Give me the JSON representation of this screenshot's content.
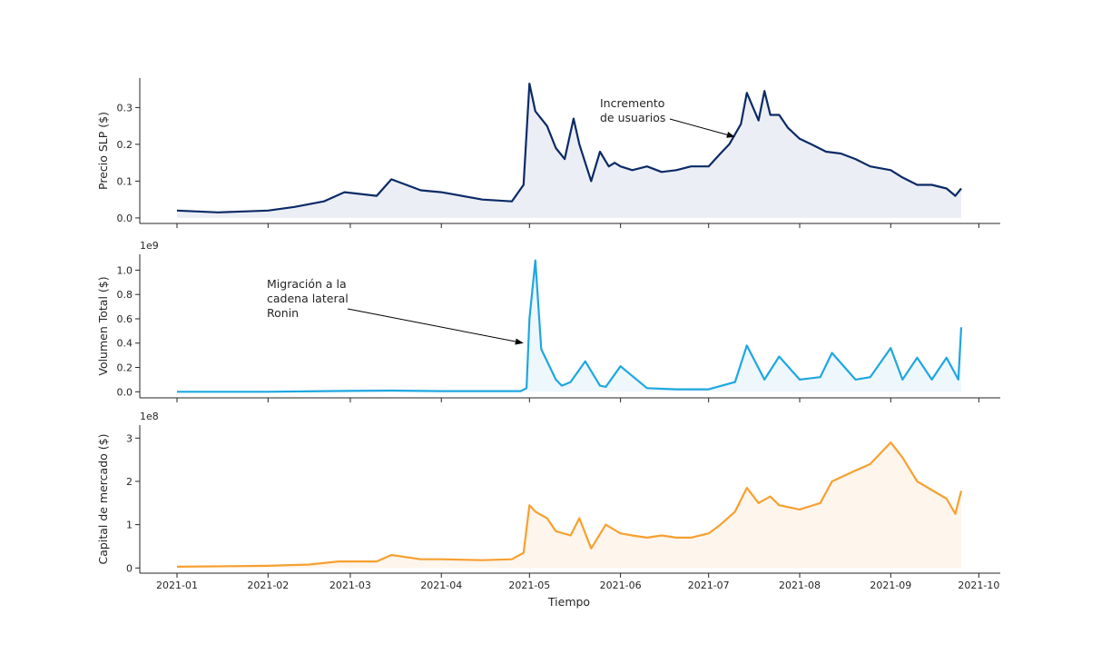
{
  "chart_data": [
    {
      "type": "area",
      "ylabel": "Precio SLP ($)",
      "ylim": [
        -0.015,
        0.38
      ],
      "yticks": [
        "0.0",
        "0.1",
        "0.2",
        "0.3"
      ],
      "ytick_values": [
        0,
        0.1,
        0.2,
        0.3
      ],
      "offset_text": "",
      "color": "#0b2a66",
      "fill": "#eceef5",
      "annotation": {
        "lines": [
          "Incremento",
          "de usuarios"
        ],
        "target": [
          "2021-07-10",
          0.22
        ]
      },
      "series": [
        {
          "x": [
            "2021-01-01",
            "2021-01-15",
            "2021-02-01",
            "2021-02-10",
            "2021-02-20",
            "2021-02-27",
            "2021-03-10",
            "2021-03-15",
            "2021-03-25",
            "2021-04-01",
            "2021-04-15",
            "2021-04-25",
            "2021-04-29",
            "2021-05-01",
            "2021-05-03",
            "2021-05-07",
            "2021-05-10",
            "2021-05-13",
            "2021-05-16",
            "2021-05-18",
            "2021-05-22",
            "2021-05-25",
            "2021-05-28",
            "2021-05-30",
            "2021-06-01",
            "2021-06-05",
            "2021-06-10",
            "2021-06-15",
            "2021-06-20",
            "2021-06-25",
            "2021-07-01",
            "2021-07-05",
            "2021-07-08",
            "2021-07-12",
            "2021-07-14",
            "2021-07-18",
            "2021-07-20",
            "2021-07-22",
            "2021-07-25",
            "2021-07-28",
            "2021-08-01",
            "2021-08-05",
            "2021-08-10",
            "2021-08-15",
            "2021-08-20",
            "2021-08-25",
            "2021-09-01",
            "2021-09-05",
            "2021-09-10",
            "2021-09-15",
            "2021-09-20",
            "2021-09-23",
            "2021-09-25"
          ],
          "y": [
            0.02,
            0.015,
            0.02,
            0.03,
            0.045,
            0.07,
            0.06,
            0.105,
            0.075,
            0.07,
            0.05,
            0.045,
            0.09,
            0.365,
            0.29,
            0.25,
            0.19,
            0.16,
            0.27,
            0.2,
            0.1,
            0.18,
            0.14,
            0.15,
            0.14,
            0.13,
            0.14,
            0.125,
            0.13,
            0.14,
            0.14,
            0.175,
            0.2,
            0.255,
            0.34,
            0.265,
            0.345,
            0.28,
            0.28,
            0.245,
            0.215,
            0.2,
            0.18,
            0.175,
            0.16,
            0.14,
            0.13,
            0.11,
            0.09,
            0.09,
            0.08,
            0.06,
            0.08
          ]
        }
      ]
    },
    {
      "type": "area",
      "ylabel": "Volumen Total ($)",
      "ylim": [
        -0.05,
        1.13
      ],
      "yticks": [
        "0.0",
        "0.2",
        "0.4",
        "0.6",
        "0.8",
        "1.0"
      ],
      "ytick_values": [
        0,
        0.2,
        0.4,
        0.6,
        0.8,
        1.0
      ],
      "offset_text": "1e9",
      "color": "#1ea7e1",
      "fill": "#eef7fc",
      "annotation": {
        "lines": [
          "Migración a la",
          "cadena lateral",
          "Ronin"
        ],
        "target": [
          "2021-04-29",
          0.4
        ]
      },
      "series": [
        {
          "x": [
            "2021-01-01",
            "2021-02-01",
            "2021-02-20",
            "2021-03-15",
            "2021-04-01",
            "2021-04-28",
            "2021-04-30",
            "2021-05-01",
            "2021-05-03",
            "2021-05-05",
            "2021-05-10",
            "2021-05-12",
            "2021-05-15",
            "2021-05-20",
            "2021-05-25",
            "2021-05-27",
            "2021-06-01",
            "2021-06-10",
            "2021-06-20",
            "2021-07-01",
            "2021-07-10",
            "2021-07-14",
            "2021-07-20",
            "2021-07-25",
            "2021-08-01",
            "2021-08-08",
            "2021-08-12",
            "2021-08-20",
            "2021-08-25",
            "2021-09-01",
            "2021-09-05",
            "2021-09-10",
            "2021-09-15",
            "2021-09-20",
            "2021-09-24",
            "2021-09-25"
          ],
          "y": [
            0.0,
            0.0,
            0.005,
            0.01,
            0.005,
            0.005,
            0.03,
            0.6,
            1.08,
            0.35,
            0.1,
            0.05,
            0.08,
            0.25,
            0.05,
            0.04,
            0.21,
            0.03,
            0.02,
            0.02,
            0.08,
            0.38,
            0.1,
            0.29,
            0.1,
            0.12,
            0.32,
            0.1,
            0.12,
            0.36,
            0.1,
            0.28,
            0.1,
            0.28,
            0.1,
            0.53
          ]
        }
      ]
    },
    {
      "type": "area",
      "ylabel": "Capital de mercado ($)",
      "ylim": [
        -0.12,
        3.3
      ],
      "yticks": [
        "0",
        "1",
        "2",
        "3"
      ],
      "ytick_values": [
        0,
        1,
        2,
        3
      ],
      "offset_text": "1e8",
      "color": "#f7a030",
      "fill": "#fef5ec",
      "annotation": null,
      "series": [
        {
          "x": [
            "2021-01-01",
            "2021-02-01",
            "2021-02-15",
            "2021-02-25",
            "2021-03-10",
            "2021-03-15",
            "2021-03-25",
            "2021-04-01",
            "2021-04-15",
            "2021-04-25",
            "2021-04-29",
            "2021-05-01",
            "2021-05-03",
            "2021-05-07",
            "2021-05-10",
            "2021-05-15",
            "2021-05-18",
            "2021-05-22",
            "2021-05-27",
            "2021-06-01",
            "2021-06-05",
            "2021-06-10",
            "2021-06-15",
            "2021-06-20",
            "2021-06-25",
            "2021-07-01",
            "2021-07-05",
            "2021-07-10",
            "2021-07-14",
            "2021-07-18",
            "2021-07-22",
            "2021-07-25",
            "2021-08-01",
            "2021-08-08",
            "2021-08-12",
            "2021-08-20",
            "2021-08-25",
            "2021-09-01",
            "2021-09-05",
            "2021-09-10",
            "2021-09-15",
            "2021-09-20",
            "2021-09-23",
            "2021-09-25"
          ],
          "y": [
            0.03,
            0.05,
            0.08,
            0.15,
            0.15,
            0.3,
            0.2,
            0.2,
            0.18,
            0.2,
            0.35,
            1.45,
            1.3,
            1.15,
            0.85,
            0.75,
            1.15,
            0.45,
            1.0,
            0.8,
            0.75,
            0.7,
            0.75,
            0.7,
            0.7,
            0.8,
            1.0,
            1.3,
            1.85,
            1.5,
            1.65,
            1.45,
            1.35,
            1.5,
            2.0,
            2.25,
            2.4,
            2.9,
            2.55,
            2.0,
            1.8,
            1.6,
            1.25,
            1.78
          ]
        }
      ]
    }
  ],
  "xaxis": {
    "label": "Tiempo",
    "start": "2021-01-01",
    "end": "2021-09-25",
    "ticks": [
      "2021-01",
      "2021-02",
      "2021-03",
      "2021-04",
      "2021-05",
      "2021-06",
      "2021-07",
      "2021-08",
      "2021-09",
      "2021-10"
    ],
    "tick_dates": [
      "2021-01-01",
      "2021-02-01",
      "2021-03-01",
      "2021-04-01",
      "2021-05-01",
      "2021-06-01",
      "2021-07-01",
      "2021-08-01",
      "2021-09-01",
      "2021-10-01"
    ]
  }
}
